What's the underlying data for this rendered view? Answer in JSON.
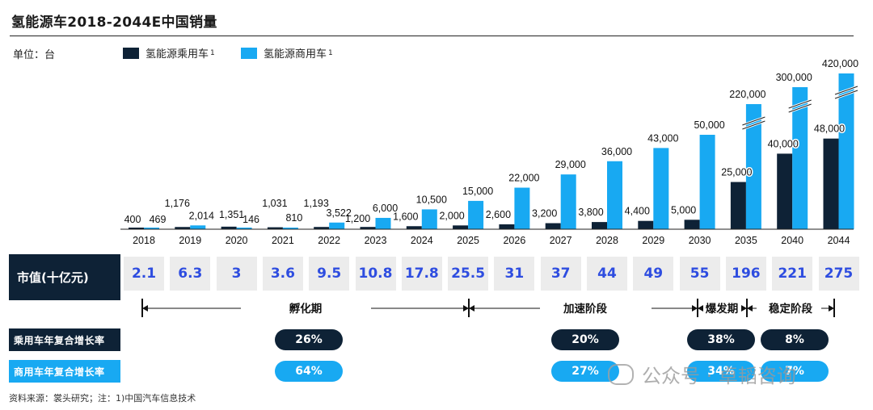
{
  "title": "氢能源车2018-2044E中国销量",
  "unit_label": "单位：台",
  "legend": [
    {
      "label": "氢能源乘用车",
      "sup": "1",
      "color": "#0e2236"
    },
    {
      "label": "氢能源商用车",
      "sup": "1",
      "color": "#18a9f2"
    }
  ],
  "chart_data": {
    "type": "bar",
    "title": "氢能源车2018-2044E中国销量",
    "ylabel": "",
    "categories": [
      "2018",
      "2019",
      "2020",
      "2021",
      "2022",
      "2023",
      "2024",
      "2025",
      "2026",
      "2027",
      "2028",
      "2029",
      "2030",
      "2035",
      "2040",
      "2044"
    ],
    "series": [
      {
        "name": "氢能源乘用车",
        "color": "#0e2236",
        "values": [
          400,
          1176,
          1351,
          1031,
          1193,
          1200,
          1600,
          2000,
          2600,
          3200,
          3800,
          4400,
          5000,
          25000,
          40000,
          48000
        ],
        "labels": [
          "400",
          "1,176",
          "1,351",
          "1,031",
          "1,193",
          "1,200",
          "1,600",
          "2,000",
          "2,600",
          "3,200",
          "3,800",
          "4,400",
          "5,000",
          "25,000",
          "40,000",
          "48,000"
        ]
      },
      {
        "name": "氢能源商用车",
        "color": "#18a9f2",
        "values": [
          469,
          2014,
          146,
          810,
          3522,
          6000,
          10500,
          15000,
          22000,
          29000,
          36000,
          43000,
          50000,
          220000,
          300000,
          420000
        ],
        "labels": [
          "469",
          "2,014",
          "146",
          "810",
          "3,522",
          "6,000",
          "10,500",
          "15,000",
          "22,000",
          "29,000",
          "36,000",
          "43,000",
          "50,000",
          "220,000",
          "300,000",
          "420,000"
        ]
      }
    ],
    "axis_break_categories": [
      "2035",
      "2040",
      "2044"
    ]
  },
  "market_value": {
    "label": "市值(十亿元)",
    "values": [
      "2.1",
      "6.3",
      "3",
      "3.6",
      "9.5",
      "10.8",
      "17.8",
      "25.5",
      "31",
      "37",
      "44",
      "49",
      "55",
      "196",
      "221",
      "275"
    ]
  },
  "phases": [
    {
      "name": "孵化期"
    },
    {
      "name": "加速阶段"
    },
    {
      "name": "爆发期"
    },
    {
      "name": "稳定阶段"
    }
  ],
  "cagr": {
    "passenger": {
      "label": "乘用车年复合增长率",
      "color": "#0e2236",
      "values": [
        "26%",
        "20%",
        "38%",
        "8%"
      ]
    },
    "commercial": {
      "label": "商用车年复合增长率",
      "color": "#18a9f2",
      "values": [
        "64%",
        "27%",
        "34%",
        "7%"
      ]
    }
  },
  "source": "资料来源：裳头研究；注：1)中国汽车信息技术",
  "watermark": "公众号 · 卓韬咨询"
}
